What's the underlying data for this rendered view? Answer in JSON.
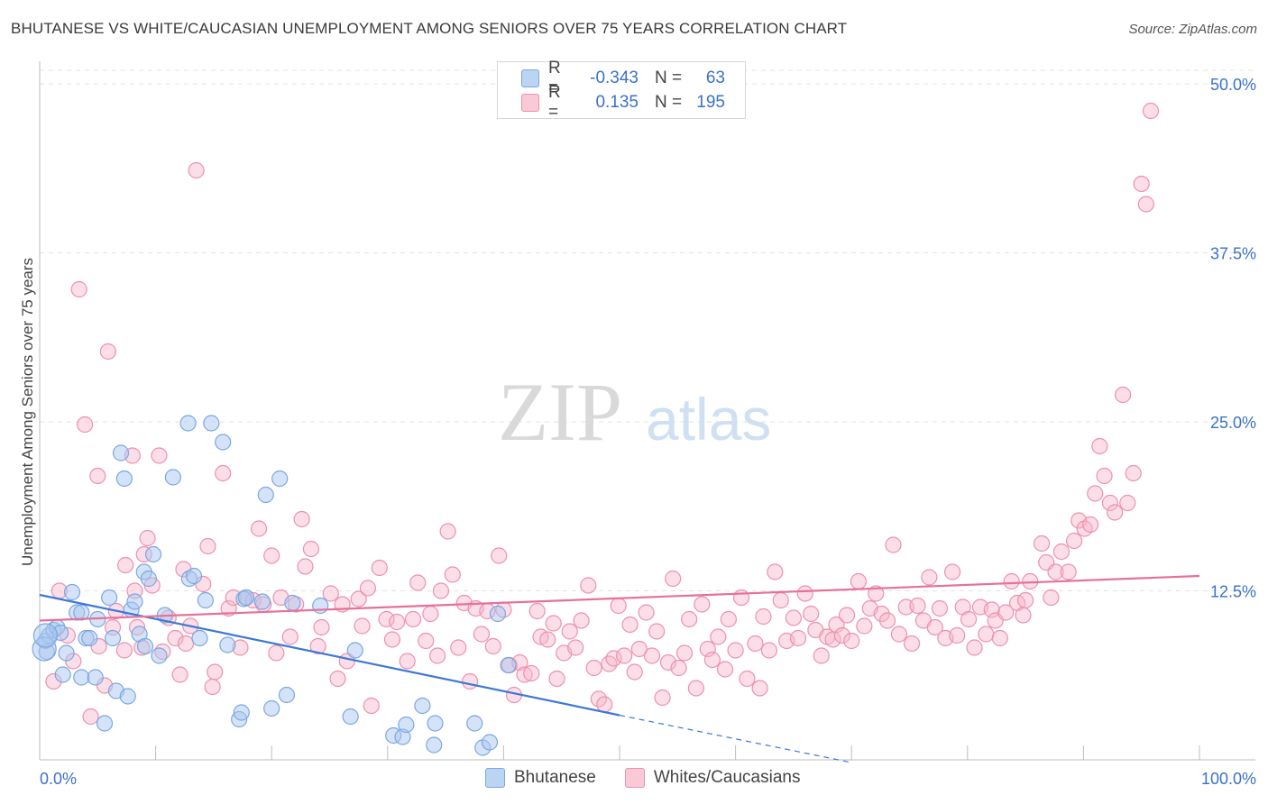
{
  "title": "BHUTANESE VS WHITE/CAUCASIAN UNEMPLOYMENT AMONG SENIORS OVER 75 YEARS CORRELATION CHART",
  "source": "Source: ZipAtlas.com",
  "watermark": {
    "zip": "ZIP",
    "atlas": "atlas"
  },
  "legend": {
    "rows": [
      {
        "swatch_color": "#a9c8f0",
        "r_label": "R =",
        "r_value": "-0.343",
        "n_label": "N =",
        "n_value": "63"
      },
      {
        "swatch_color": "#f6b6ca",
        "r_label": "R =",
        "r_value": "0.135",
        "n_label": "N =",
        "n_value": "195"
      }
    ]
  },
  "bottom_legend": [
    {
      "label": "Bhutanese",
      "color": "#a9c8f0"
    },
    {
      "label": "Whites/Caucasians",
      "color": "#f6b6ca"
    }
  ],
  "chart_data": {
    "type": "scatter",
    "xlabel": "",
    "ylabel": "Unemployment Among Seniors over 75 years",
    "x_tick_labels": [
      "0.0%",
      "100.0%"
    ],
    "y_tick_labels": [
      "12.5%",
      "25.0%",
      "37.5%",
      "50.0%"
    ],
    "y_ticks": [
      12.5,
      25.0,
      37.5,
      50.0
    ],
    "xlim": [
      0,
      100
    ],
    "ylim": [
      0,
      51
    ],
    "grid": true,
    "series": [
      {
        "name": "Bhutanese",
        "color": "#7aa7e3",
        "fill": "#a9c8f0",
        "trend": {
          "x0": 0,
          "y0": 12.2,
          "x1": 50,
          "y1": 3.3,
          "dash_to_x": 70,
          "dash_to_y": -0.2,
          "color": "#3d78d8"
        },
        "points": [
          [
            0.5,
            8.8
          ],
          [
            0.6,
            8.0
          ],
          [
            0.8,
            9.2
          ],
          [
            1.2,
            9.6
          ],
          [
            1.5,
            9.8
          ],
          [
            1.8,
            9.4
          ],
          [
            2.0,
            6.3
          ],
          [
            2.3,
            7.9
          ],
          [
            2.8,
            12.4
          ],
          [
            3.2,
            10.9
          ],
          [
            3.6,
            10.9
          ],
          [
            3.6,
            6.1
          ],
          [
            4.0,
            9.0
          ],
          [
            4.3,
            9.0
          ],
          [
            4.8,
            6.1
          ],
          [
            5.0,
            10.4
          ],
          [
            5.6,
            2.7
          ],
          [
            6.0,
            12.0
          ],
          [
            6.3,
            9.0
          ],
          [
            6.6,
            5.1
          ],
          [
            7.0,
            22.7
          ],
          [
            7.3,
            20.8
          ],
          [
            7.6,
            4.7
          ],
          [
            7.9,
            11.1
          ],
          [
            8.2,
            11.7
          ],
          [
            8.6,
            9.3
          ],
          [
            9.0,
            13.9
          ],
          [
            9.1,
            8.4
          ],
          [
            9.4,
            13.4
          ],
          [
            9.8,
            15.2
          ],
          [
            10.3,
            7.7
          ],
          [
            10.8,
            10.7
          ],
          [
            11.5,
            20.9
          ],
          [
            12.8,
            24.9
          ],
          [
            12.9,
            13.4
          ],
          [
            13.3,
            13.6
          ],
          [
            13.8,
            9.0
          ],
          [
            14.3,
            11.8
          ],
          [
            14.8,
            24.9
          ],
          [
            15.8,
            23.5
          ],
          [
            16.2,
            8.5
          ],
          [
            17.2,
            3.0
          ],
          [
            17.4,
            3.5
          ],
          [
            17.6,
            11.9
          ],
          [
            17.8,
            12.0
          ],
          [
            19.2,
            11.7
          ],
          [
            19.5,
            19.6
          ],
          [
            20.0,
            3.8
          ],
          [
            20.7,
            20.8
          ],
          [
            21.3,
            4.8
          ],
          [
            21.8,
            11.6
          ],
          [
            24.2,
            11.4
          ],
          [
            26.8,
            3.2
          ],
          [
            27.2,
            8.1
          ],
          [
            30.5,
            1.8
          ],
          [
            31.3,
            1.7
          ],
          [
            31.6,
            2.6
          ],
          [
            33.0,
            4.0
          ],
          [
            34.0,
            1.1
          ],
          [
            34.1,
            2.7
          ],
          [
            37.5,
            2.7
          ],
          [
            38.2,
            0.9
          ],
          [
            38.8,
            1.3
          ],
          [
            39.5,
            10.8
          ],
          [
            40.4,
            7.0
          ]
        ],
        "sizes": {
          "large_points": [
            [
              0.4,
              8.2
            ],
            [
              0.5,
              9.2
            ]
          ]
        }
      },
      {
        "name": "Whites/Caucasians",
        "color": "#ee90ad",
        "fill": "#f6b6ca",
        "trend": {
          "x0": 0,
          "y0": 10.3,
          "x1": 100,
          "y1": 13.6,
          "color": "#e7709a"
        },
        "points": [
          [
            1.2,
            5.8
          ],
          [
            1.7,
            12.5
          ],
          [
            2.4,
            9.2
          ],
          [
            2.9,
            7.3
          ],
          [
            3.4,
            34.8
          ],
          [
            3.9,
            24.8
          ],
          [
            4.4,
            3.2
          ],
          [
            5.0,
            21.0
          ],
          [
            5.1,
            8.4
          ],
          [
            5.6,
            5.5
          ],
          [
            5.9,
            30.2
          ],
          [
            6.3,
            9.8
          ],
          [
            6.6,
            11.0
          ],
          [
            7.3,
            8.1
          ],
          [
            7.4,
            14.4
          ],
          [
            8.0,
            22.5
          ],
          [
            8.2,
            12.5
          ],
          [
            8.4,
            9.8
          ],
          [
            8.8,
            8.3
          ],
          [
            9.0,
            15.2
          ],
          [
            9.3,
            16.4
          ],
          [
            9.7,
            12.9
          ],
          [
            10.3,
            22.5
          ],
          [
            10.6,
            8.0
          ],
          [
            11.1,
            10.5
          ],
          [
            11.7,
            9.0
          ],
          [
            12.1,
            6.3
          ],
          [
            12.4,
            14.1
          ],
          [
            12.6,
            8.6
          ],
          [
            13.0,
            9.9
          ],
          [
            13.5,
            43.6
          ],
          [
            14.1,
            13.0
          ],
          [
            14.5,
            15.8
          ],
          [
            14.9,
            5.4
          ],
          [
            15.1,
            6.5
          ],
          [
            15.8,
            21.2
          ],
          [
            16.3,
            11.2
          ],
          [
            16.7,
            12.0
          ],
          [
            17.3,
            8.3
          ],
          [
            17.8,
            12.0
          ],
          [
            18.4,
            11.8
          ],
          [
            18.9,
            17.1
          ],
          [
            19.3,
            11.5
          ],
          [
            20.0,
            15.1
          ],
          [
            20.4,
            7.9
          ],
          [
            20.8,
            12.0
          ],
          [
            21.6,
            9.1
          ],
          [
            22.1,
            11.5
          ],
          [
            22.6,
            17.8
          ],
          [
            22.9,
            14.3
          ],
          [
            23.4,
            15.6
          ],
          [
            24.0,
            8.4
          ],
          [
            24.3,
            9.8
          ],
          [
            25.1,
            12.3
          ],
          [
            25.7,
            6.0
          ],
          [
            26.1,
            11.5
          ],
          [
            26.5,
            7.3
          ],
          [
            27.5,
            11.9
          ],
          [
            27.8,
            9.9
          ],
          [
            28.3,
            12.7
          ],
          [
            28.6,
            4.0
          ],
          [
            29.3,
            14.2
          ],
          [
            29.9,
            10.4
          ],
          [
            30.4,
            8.9
          ],
          [
            30.8,
            10.2
          ],
          [
            31.7,
            7.3
          ],
          [
            32.2,
            10.4
          ],
          [
            32.6,
            13.1
          ],
          [
            33.3,
            8.8
          ],
          [
            33.7,
            10.8
          ],
          [
            34.3,
            7.7
          ],
          [
            34.6,
            12.5
          ],
          [
            35.2,
            16.9
          ],
          [
            35.6,
            13.7
          ],
          [
            36.1,
            8.3
          ],
          [
            36.6,
            11.6
          ],
          [
            37.1,
            5.8
          ],
          [
            37.6,
            11.2
          ],
          [
            38.1,
            9.3
          ],
          [
            38.6,
            11.0
          ],
          [
            39.1,
            8.4
          ],
          [
            39.6,
            15.1
          ],
          [
            40.0,
            11.1
          ],
          [
            40.5,
            7.0
          ],
          [
            40.9,
            4.8
          ],
          [
            41.4,
            7.2
          ],
          [
            41.8,
            6.3
          ],
          [
            42.4,
            6.4
          ],
          [
            42.9,
            11.0
          ],
          [
            43.2,
            9.1
          ],
          [
            43.8,
            8.9
          ],
          [
            44.3,
            10.1
          ],
          [
            44.6,
            6.0
          ],
          [
            45.2,
            7.9
          ],
          [
            45.7,
            9.5
          ],
          [
            46.2,
            8.3
          ],
          [
            46.7,
            10.3
          ],
          [
            47.3,
            12.9
          ],
          [
            47.8,
            6.8
          ],
          [
            48.2,
            4.5
          ],
          [
            48.7,
            4.1
          ],
          [
            49.1,
            7.1
          ],
          [
            49.5,
            7.5
          ],
          [
            49.9,
            11.4
          ],
          [
            50.4,
            7.7
          ],
          [
            50.9,
            10.0
          ],
          [
            51.3,
            6.5
          ],
          [
            51.7,
            8.2
          ],
          [
            52.3,
            10.9
          ],
          [
            52.8,
            7.7
          ],
          [
            53.2,
            9.5
          ],
          [
            53.7,
            4.6
          ],
          [
            54.2,
            7.2
          ],
          [
            54.6,
            13.4
          ],
          [
            55.1,
            6.8
          ],
          [
            55.6,
            7.9
          ],
          [
            56.0,
            10.4
          ],
          [
            56.6,
            5.3
          ],
          [
            57.1,
            11.5
          ],
          [
            57.6,
            8.2
          ],
          [
            58.0,
            7.4
          ],
          [
            58.5,
            9.1
          ],
          [
            59.1,
            6.7
          ],
          [
            59.4,
            10.4
          ],
          [
            60.0,
            8.1
          ],
          [
            60.5,
            12.0
          ],
          [
            61.0,
            6.0
          ],
          [
            61.7,
            8.6
          ],
          [
            62.1,
            5.3
          ],
          [
            62.4,
            10.6
          ],
          [
            62.9,
            8.1
          ],
          [
            63.4,
            13.9
          ],
          [
            63.9,
            11.8
          ],
          [
            64.4,
            8.8
          ],
          [
            65.0,
            10.5
          ],
          [
            65.4,
            9.0
          ],
          [
            66.0,
            12.3
          ],
          [
            66.5,
            10.8
          ],
          [
            66.9,
            9.6
          ],
          [
            67.4,
            7.7
          ],
          [
            67.9,
            9.1
          ],
          [
            68.4,
            8.9
          ],
          [
            68.7,
            10.0
          ],
          [
            69.2,
            9.2
          ],
          [
            69.6,
            10.7
          ],
          [
            70.0,
            8.8
          ],
          [
            70.6,
            13.2
          ],
          [
            71.1,
            9.9
          ],
          [
            71.6,
            11.2
          ],
          [
            72.1,
            12.3
          ],
          [
            72.6,
            10.8
          ],
          [
            73.1,
            10.3
          ],
          [
            73.6,
            15.9
          ],
          [
            74.1,
            9.3
          ],
          [
            74.7,
            11.3
          ],
          [
            75.2,
            8.6
          ],
          [
            75.7,
            11.4
          ],
          [
            76.2,
            10.3
          ],
          [
            76.7,
            13.5
          ],
          [
            77.2,
            9.8
          ],
          [
            77.6,
            11.2
          ],
          [
            78.1,
            9.0
          ],
          [
            78.7,
            13.9
          ],
          [
            79.1,
            9.2
          ],
          [
            79.6,
            11.3
          ],
          [
            80.1,
            10.4
          ],
          [
            80.6,
            8.3
          ],
          [
            81.1,
            11.3
          ],
          [
            81.6,
            9.3
          ],
          [
            82.1,
            11.1
          ],
          [
            82.4,
            10.3
          ],
          [
            82.8,
            9.0
          ],
          [
            83.3,
            10.9
          ],
          [
            83.8,
            13.2
          ],
          [
            84.3,
            11.6
          ],
          [
            84.8,
            10.7
          ],
          [
            85.0,
            11.8
          ],
          [
            85.4,
            13.2
          ],
          [
            86.4,
            16.0
          ],
          [
            86.8,
            14.6
          ],
          [
            87.2,
            12.0
          ],
          [
            87.6,
            13.9
          ],
          [
            88.1,
            15.4
          ],
          [
            88.7,
            13.9
          ],
          [
            89.2,
            16.2
          ],
          [
            89.6,
            17.7
          ],
          [
            90.1,
            17.1
          ],
          [
            90.6,
            17.4
          ],
          [
            91.0,
            19.7
          ],
          [
            91.4,
            23.2
          ],
          [
            91.8,
            21.0
          ],
          [
            92.3,
            19.0
          ],
          [
            92.7,
            18.3
          ],
          [
            93.4,
            27.0
          ],
          [
            93.8,
            19.0
          ],
          [
            94.3,
            21.2
          ],
          [
            95.0,
            42.6
          ],
          [
            95.4,
            41.1
          ],
          [
            95.8,
            48.0
          ]
        ]
      }
    ]
  }
}
